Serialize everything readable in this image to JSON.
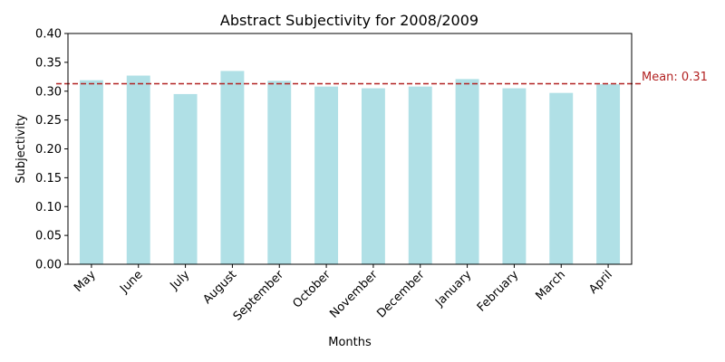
{
  "chart_data": {
    "type": "bar",
    "title": "Abstract Subjectivity for 2008/2009",
    "xlabel": "Months",
    "ylabel": "Subjectivity",
    "categories": [
      "May",
      "June",
      "July",
      "August",
      "September",
      "October",
      "November",
      "December",
      "January",
      "February",
      "March",
      "April"
    ],
    "values": [
      0.319,
      0.327,
      0.295,
      0.335,
      0.318,
      0.308,
      0.305,
      0.308,
      0.321,
      0.305,
      0.297,
      0.312
    ],
    "ylim": [
      0,
      0.4
    ],
    "yticks": [
      "0.00",
      "0.05",
      "0.10",
      "0.15",
      "0.20",
      "0.25",
      "0.30",
      "0.35",
      "0.40"
    ],
    "bar_color": "#b0e0e6",
    "reference_line": {
      "value": 0.313,
      "label": "Mean: 0.31",
      "color": "#b22222",
      "style": "dashed"
    },
    "grid": false,
    "legend": "none"
  }
}
